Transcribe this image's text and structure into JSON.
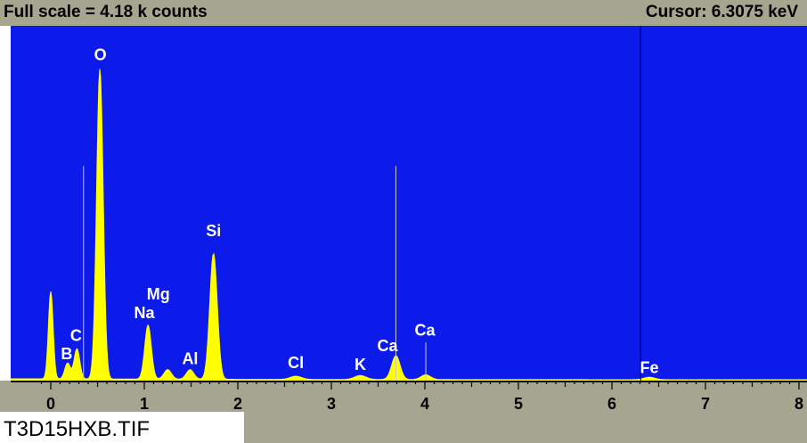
{
  "header": {
    "full_scale_label": "Full scale = 4.18 k counts",
    "cursor_label": "Cursor: 6.3075 keV"
  },
  "footer": {
    "filename": "T3D15HXB.TIF"
  },
  "colors": {
    "plot_background": "#0c1aea",
    "spectrum": "#ffff00",
    "frame": "#a6a690",
    "marker_line": "#c8c8c8",
    "cursor_line": "#000000"
  },
  "chart_data": {
    "type": "area",
    "xlim": [
      -0.1,
      8.0
    ],
    "ylim": [
      0,
      4.18
    ],
    "x_tick_labels": [
      "0",
      "1",
      "2",
      "3",
      "4",
      "5",
      "6",
      "7",
      "8"
    ],
    "x_ticks": [
      0,
      1,
      2,
      3,
      4,
      5,
      6,
      7,
      8
    ],
    "cursor_keV": 6.3075,
    "peaks": [
      {
        "keV": 0.0,
        "counts": 1.1,
        "width": 0.025
      },
      {
        "keV": 0.18,
        "counts": 0.2,
        "width": 0.03
      },
      {
        "keV": 0.28,
        "counts": 0.38,
        "width": 0.03
      },
      {
        "keV": 0.525,
        "counts": 3.9,
        "width": 0.035
      },
      {
        "keV": 1.04,
        "counts": 0.68,
        "width": 0.035
      },
      {
        "keV": 1.25,
        "counts": 0.12,
        "width": 0.04
      },
      {
        "keV": 1.49,
        "counts": 0.12,
        "width": 0.04
      },
      {
        "keV": 1.74,
        "counts": 1.58,
        "width": 0.04
      },
      {
        "keV": 2.62,
        "counts": 0.04,
        "width": 0.06
      },
      {
        "keV": 3.31,
        "counts": 0.05,
        "width": 0.06
      },
      {
        "keV": 3.69,
        "counts": 0.3,
        "width": 0.045
      },
      {
        "keV": 4.01,
        "counts": 0.06,
        "width": 0.05
      },
      {
        "keV": 6.4,
        "counts": 0.03,
        "width": 0.06
      }
    ],
    "marker_lines": [
      {
        "keV": 0.35,
        "height": 2.7
      },
      {
        "keV": 3.69,
        "height": 2.7
      },
      {
        "keV": 4.01,
        "height": 0.48
      }
    ],
    "element_labels": [
      {
        "text": "O",
        "keV": 0.53,
        "counts": 3.96
      },
      {
        "text": "Si",
        "keV": 1.74,
        "counts": 1.75
      },
      {
        "text": "Mg",
        "keV": 1.15,
        "counts": 0.95
      },
      {
        "text": "Na",
        "keV": 1.0,
        "counts": 0.72
      },
      {
        "text": "C",
        "keV": 0.27,
        "counts": 0.43
      },
      {
        "text": "B",
        "keV": 0.17,
        "counts": 0.2
      },
      {
        "text": "Al",
        "keV": 1.49,
        "counts": 0.14
      },
      {
        "text": "Cl",
        "keV": 2.62,
        "counts": 0.09
      },
      {
        "text": "K",
        "keV": 3.31,
        "counts": 0.07
      },
      {
        "text": "Ca",
        "keV": 3.6,
        "counts": 0.3
      },
      {
        "text": "Ca",
        "keV": 4.0,
        "counts": 0.5
      },
      {
        "text": "Fe",
        "keV": 6.4,
        "counts": 0.03
      }
    ]
  }
}
